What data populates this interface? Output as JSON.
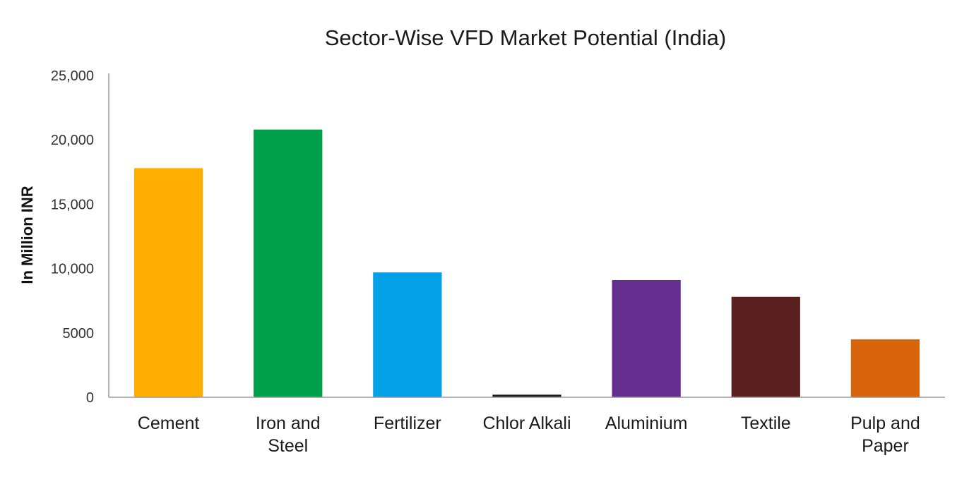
{
  "chart_data": {
    "type": "bar",
    "title": "Sector-Wise VFD Market Potential (India)",
    "xlabel": "",
    "ylabel": "In Million INR",
    "ylim": [
      0,
      25000
    ],
    "yticks": [
      0,
      5000,
      10000,
      15000,
      20000,
      25000
    ],
    "ytick_labels": [
      "0",
      "5000",
      "10,000",
      "15,000",
      "20,000",
      "25,000"
    ],
    "categories": [
      [
        "Cement"
      ],
      [
        "Iron and",
        "Steel"
      ],
      [
        "Fertilizer"
      ],
      [
        "Chlor Alkali"
      ],
      [
        "Aluminium"
      ],
      [
        "Textile"
      ],
      [
        "Pulp and",
        "Paper"
      ]
    ],
    "values": [
      17800,
      20800,
      9700,
      200,
      9100,
      7800,
      4500
    ],
    "colors": [
      "#FFAE00",
      "#00A04A",
      "#05A0E6",
      "#1A1A1A",
      "#652D90",
      "#5A201F",
      "#D8640C"
    ],
    "grid": false,
    "legend": "none"
  }
}
